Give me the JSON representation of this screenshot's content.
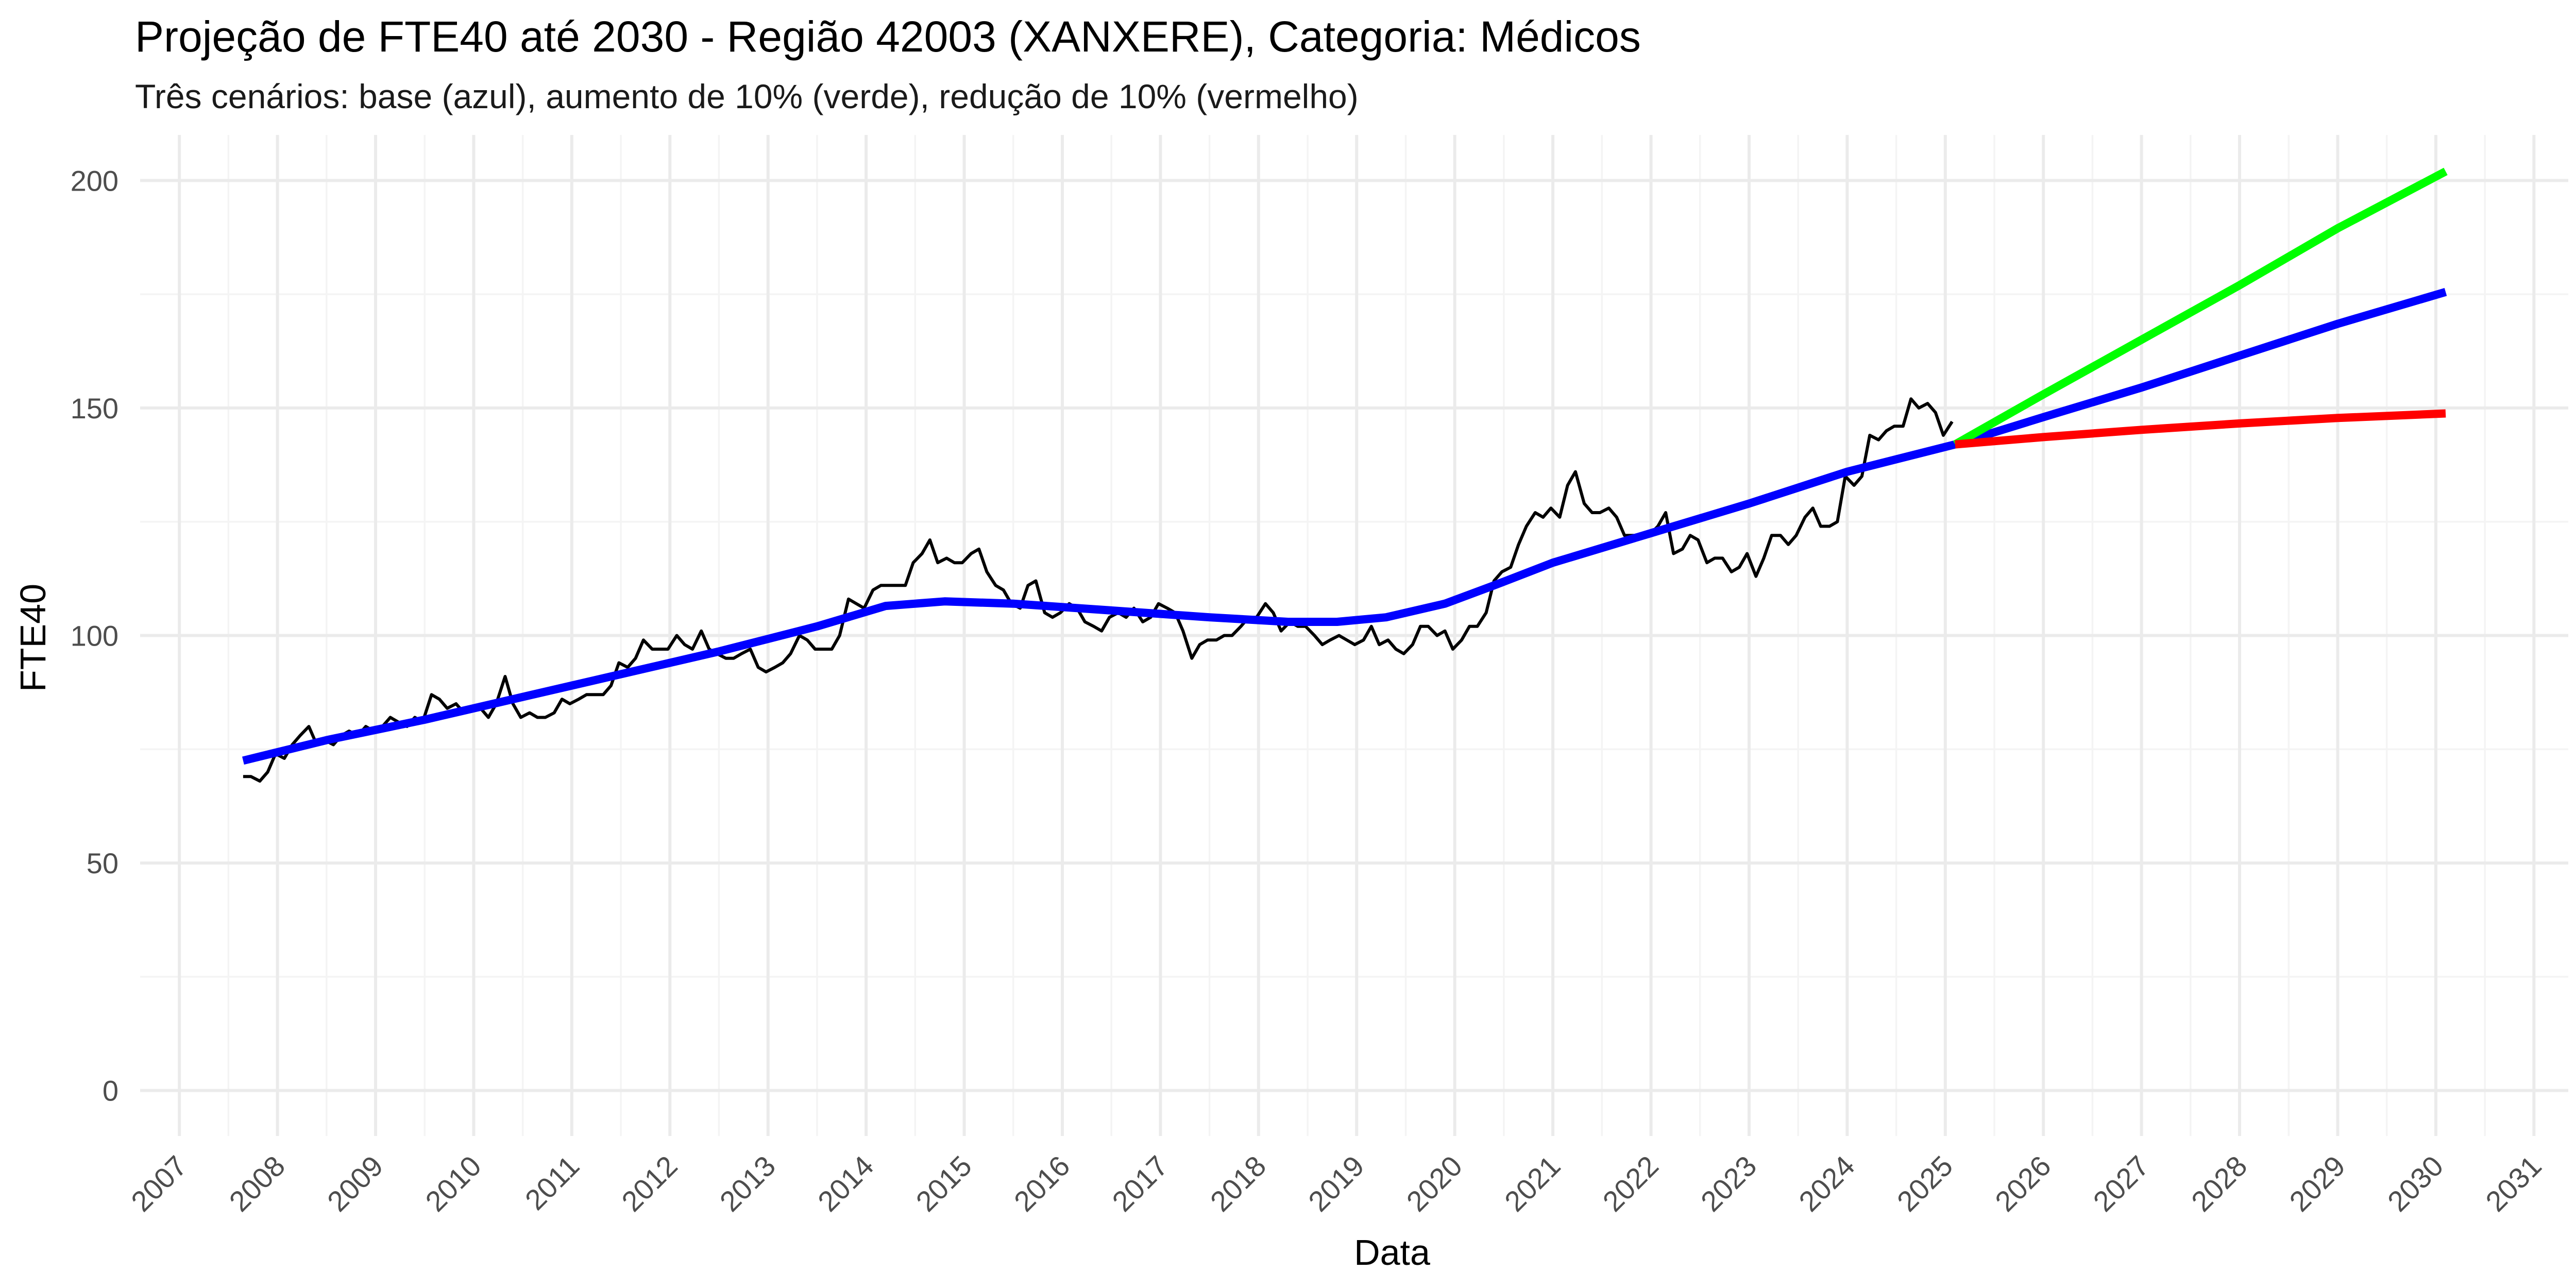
{
  "chart_data": {
    "type": "line",
    "title": "Projeção de FTE40 até 2030 - Região 42003 (XANXERE), Categoria: Médicos",
    "subtitle": "Três cenários: base (azul), aumento de 10% (verde), redução de 10% (vermelho)",
    "xlabel": "Data",
    "ylabel": "FTE40",
    "xlim": [
      2006.6,
      2031.35
    ],
    "ylim": [
      -10,
      210
    ],
    "x_ticks": [
      "2007",
      "2008",
      "2009",
      "2010",
      "2011",
      "2012",
      "2013",
      "2014",
      "2015",
      "2016",
      "2017",
      "2018",
      "2019",
      "2020",
      "2021",
      "2022",
      "2023",
      "2024",
      "2025",
      "2026",
      "2027",
      "2028",
      "2029",
      "2030",
      "2031"
    ],
    "y_ticks": [
      0,
      50,
      100,
      150,
      200
    ],
    "grid": true,
    "legend": "none",
    "series": [
      {
        "color": "#000000",
        "points": [
          [
            2007.65,
            69
          ],
          [
            2007.73,
            69
          ],
          [
            2007.82,
            68
          ],
          [
            2007.9,
            70
          ],
          [
            2007.98,
            74
          ],
          [
            2008.07,
            73
          ],
          [
            2008.15,
            76
          ],
          [
            2008.23,
            78
          ],
          [
            2008.32,
            80
          ],
          [
            2008.4,
            76
          ],
          [
            2008.48,
            77
          ],
          [
            2008.57,
            76
          ],
          [
            2008.65,
            78
          ],
          [
            2008.73,
            79
          ],
          [
            2008.82,
            78
          ],
          [
            2008.9,
            80
          ],
          [
            2008.98,
            79
          ],
          [
            2009.07,
            80
          ],
          [
            2009.15,
            82
          ],
          [
            2009.23,
            81
          ],
          [
            2009.32,
            80
          ],
          [
            2009.4,
            82
          ],
          [
            2009.48,
            81
          ],
          [
            2009.57,
            87
          ],
          [
            2009.65,
            86
          ],
          [
            2009.73,
            84
          ],
          [
            2009.82,
            85
          ],
          [
            2009.9,
            83
          ],
          [
            2009.98,
            84
          ],
          [
            2010.07,
            84
          ],
          [
            2010.15,
            82
          ],
          [
            2010.23,
            85
          ],
          [
            2010.32,
            91
          ],
          [
            2010.4,
            85
          ],
          [
            2010.48,
            82
          ],
          [
            2010.57,
            83
          ],
          [
            2010.65,
            82
          ],
          [
            2010.73,
            82
          ],
          [
            2010.82,
            83
          ],
          [
            2010.9,
            86
          ],
          [
            2010.98,
            85
          ],
          [
            2011.07,
            86
          ],
          [
            2011.15,
            87
          ],
          [
            2011.23,
            87
          ],
          [
            2011.32,
            87
          ],
          [
            2011.4,
            89
          ],
          [
            2011.48,
            94
          ],
          [
            2011.57,
            93
          ],
          [
            2011.65,
            95
          ],
          [
            2011.73,
            99
          ],
          [
            2011.82,
            97
          ],
          [
            2011.9,
            97
          ],
          [
            2011.98,
            97
          ],
          [
            2012.07,
            100
          ],
          [
            2012.15,
            98
          ],
          [
            2012.23,
            97
          ],
          [
            2012.32,
            101
          ],
          [
            2012.4,
            97
          ],
          [
            2012.48,
            96
          ],
          [
            2012.57,
            95
          ],
          [
            2012.65,
            95
          ],
          [
            2012.73,
            96
          ],
          [
            2012.82,
            97
          ],
          [
            2012.9,
            93
          ],
          [
            2012.98,
            92
          ],
          [
            2013.07,
            93
          ],
          [
            2013.15,
            94
          ],
          [
            2013.23,
            96
          ],
          [
            2013.32,
            100
          ],
          [
            2013.4,
            99
          ],
          [
            2013.48,
            97
          ],
          [
            2013.57,
            97
          ],
          [
            2013.65,
            97
          ],
          [
            2013.73,
            100
          ],
          [
            2013.82,
            108
          ],
          [
            2013.9,
            107
          ],
          [
            2013.98,
            106
          ],
          [
            2014.07,
            110
          ],
          [
            2014.15,
            111
          ],
          [
            2014.23,
            111
          ],
          [
            2014.32,
            111
          ],
          [
            2014.4,
            111
          ],
          [
            2014.48,
            116
          ],
          [
            2014.57,
            118
          ],
          [
            2014.65,
            121
          ],
          [
            2014.73,
            116
          ],
          [
            2014.82,
            117
          ],
          [
            2014.9,
            116
          ],
          [
            2014.98,
            116
          ],
          [
            2015.07,
            118
          ],
          [
            2015.15,
            119
          ],
          [
            2015.23,
            114
          ],
          [
            2015.32,
            111
          ],
          [
            2015.4,
            110
          ],
          [
            2015.48,
            107
          ],
          [
            2015.57,
            106
          ],
          [
            2015.65,
            111
          ],
          [
            2015.73,
            112
          ],
          [
            2015.82,
            105
          ],
          [
            2015.9,
            104
          ],
          [
            2015.98,
            105
          ],
          [
            2016.07,
            107
          ],
          [
            2016.15,
            106
          ],
          [
            2016.23,
            103
          ],
          [
            2016.32,
            102
          ],
          [
            2016.4,
            101
          ],
          [
            2016.48,
            104
          ],
          [
            2016.57,
            105
          ],
          [
            2016.65,
            104
          ],
          [
            2016.73,
            106
          ],
          [
            2016.82,
            103
          ],
          [
            2016.9,
            104
          ],
          [
            2016.98,
            107
          ],
          [
            2017.07,
            106
          ],
          [
            2017.15,
            105
          ],
          [
            2017.23,
            101
          ],
          [
            2017.32,
            95
          ],
          [
            2017.4,
            98
          ],
          [
            2017.48,
            99
          ],
          [
            2017.57,
            99
          ],
          [
            2017.65,
            100
          ],
          [
            2017.73,
            100
          ],
          [
            2017.82,
            102
          ],
          [
            2017.9,
            104
          ],
          [
            2017.98,
            104
          ],
          [
            2018.07,
            107
          ],
          [
            2018.15,
            105
          ],
          [
            2018.23,
            101
          ],
          [
            2018.32,
            103
          ],
          [
            2018.4,
            102
          ],
          [
            2018.48,
            102
          ],
          [
            2018.57,
            100
          ],
          [
            2018.65,
            98
          ],
          [
            2018.73,
            99
          ],
          [
            2018.82,
            100
          ],
          [
            2018.9,
            99
          ],
          [
            2018.98,
            98
          ],
          [
            2019.07,
            99
          ],
          [
            2019.15,
            102
          ],
          [
            2019.23,
            98
          ],
          [
            2019.32,
            99
          ],
          [
            2019.4,
            97
          ],
          [
            2019.48,
            96
          ],
          [
            2019.57,
            98
          ],
          [
            2019.65,
            102
          ],
          [
            2019.73,
            102
          ],
          [
            2019.82,
            100
          ],
          [
            2019.9,
            101
          ],
          [
            2019.98,
            97
          ],
          [
            2020.07,
            99
          ],
          [
            2020.15,
            102
          ],
          [
            2020.23,
            102
          ],
          [
            2020.32,
            105
          ],
          [
            2020.4,
            112
          ],
          [
            2020.48,
            114
          ],
          [
            2020.57,
            115
          ],
          [
            2020.65,
            120
          ],
          [
            2020.73,
            124
          ],
          [
            2020.82,
            127
          ],
          [
            2020.9,
            126
          ],
          [
            2020.98,
            128
          ],
          [
            2021.07,
            126
          ],
          [
            2021.15,
            133
          ],
          [
            2021.23,
            136
          ],
          [
            2021.32,
            129
          ],
          [
            2021.4,
            127
          ],
          [
            2021.48,
            127
          ],
          [
            2021.57,
            128
          ],
          [
            2021.65,
            126
          ],
          [
            2021.73,
            122
          ],
          [
            2021.82,
            122
          ],
          [
            2021.9,
            122
          ],
          [
            2021.98,
            122
          ],
          [
            2022.07,
            124
          ],
          [
            2022.15,
            127
          ],
          [
            2022.23,
            118
          ],
          [
            2022.32,
            119
          ],
          [
            2022.4,
            122
          ],
          [
            2022.48,
            121
          ],
          [
            2022.57,
            116
          ],
          [
            2022.65,
            117
          ],
          [
            2022.73,
            117
          ],
          [
            2022.82,
            114
          ],
          [
            2022.9,
            115
          ],
          [
            2022.98,
            118
          ],
          [
            2023.07,
            113
          ],
          [
            2023.15,
            117
          ],
          [
            2023.23,
            122
          ],
          [
            2023.32,
            122
          ],
          [
            2023.4,
            120
          ],
          [
            2023.48,
            122
          ],
          [
            2023.57,
            126
          ],
          [
            2023.65,
            128
          ],
          [
            2023.73,
            124
          ],
          [
            2023.82,
            124
          ],
          [
            2023.9,
            125
          ],
          [
            2023.98,
            135
          ],
          [
            2024.07,
            133
          ],
          [
            2024.15,
            135
          ],
          [
            2024.23,
            144
          ],
          [
            2024.32,
            143
          ],
          [
            2024.4,
            145
          ],
          [
            2024.48,
            146
          ],
          [
            2024.57,
            146
          ],
          [
            2024.65,
            152
          ],
          [
            2024.73,
            150
          ],
          [
            2024.82,
            151
          ],
          [
            2024.9,
            149
          ],
          [
            2024.98,
            144
          ],
          [
            2025.07,
            147
          ]
        ]
      },
      {
        "color": "#0000FF",
        "points": [
          [
            2007.65,
            72.5
          ],
          [
            2008.5,
            77
          ],
          [
            2009.5,
            81.5
          ],
          [
            2010.5,
            86.5
          ],
          [
            2011.5,
            91.5
          ],
          [
            2012.5,
            96.5
          ],
          [
            2013.5,
            102
          ],
          [
            2014.2,
            106.5
          ],
          [
            2014.8,
            107.5
          ],
          [
            2015.5,
            107
          ],
          [
            2016.5,
            105.5
          ],
          [
            2017.5,
            104
          ],
          [
            2018.3,
            103
          ],
          [
            2018.8,
            103
          ],
          [
            2019.3,
            104
          ],
          [
            2019.9,
            107
          ],
          [
            2020.4,
            111
          ],
          [
            2021,
            116
          ],
          [
            2022,
            122.5
          ],
          [
            2023,
            129
          ],
          [
            2024,
            136
          ],
          [
            2025.1,
            142
          ],
          [
            2026,
            148
          ],
          [
            2027,
            154.5
          ],
          [
            2028,
            161.5
          ],
          [
            2029,
            168.5
          ],
          [
            2030.1,
            175.5
          ]
        ]
      },
      {
        "color": "#00FF00",
        "points": [
          [
            2025.1,
            142
          ],
          [
            2026,
            153
          ],
          [
            2027,
            165
          ],
          [
            2028,
            177
          ],
          [
            2029,
            189.5
          ],
          [
            2030.1,
            202
          ]
        ]
      },
      {
        "color": "#FF0000",
        "points": [
          [
            2025.1,
            142
          ],
          [
            2026,
            143.6
          ],
          [
            2027,
            145.2
          ],
          [
            2028,
            146.6
          ],
          [
            2029,
            147.8
          ],
          [
            2030.1,
            148.8
          ]
        ]
      }
    ]
  }
}
